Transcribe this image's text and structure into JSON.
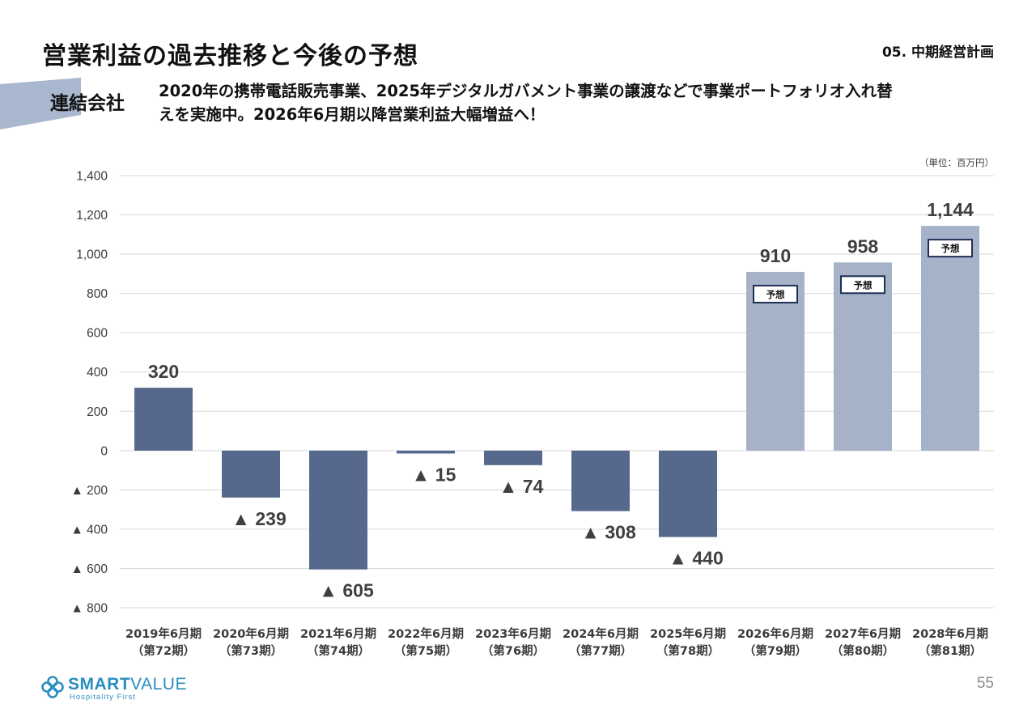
{
  "header": {
    "title": "営業利益の過去推移と今後の予想",
    "section": "05. 中期経営計画",
    "entity_label": "連結会社",
    "lead_line1": "2020年の携帯電話販売事業、2025年デジタルガバメント事業の譲渡などで事業ポートフォリオ入れ替",
    "lead_line2": "えを実施中。2026年6月期以降営業利益大幅増益へ！"
  },
  "footer": {
    "brand_smart": "SMART",
    "brand_value": "VALUE",
    "brand_tagline": "Hospitality First",
    "page_number": "55"
  },
  "colors": {
    "actual_bar": "#56698c",
    "forecast_bar": "#a5b2c7",
    "grid": "#d9d9d9",
    "label": "#3f3f3f",
    "forecast_badge_border": "#1f2f55"
  },
  "chart_data": {
    "type": "bar",
    "unit_note": "（単位：百万円）",
    "ylim": [
      -800,
      1400
    ],
    "y_ticks": [
      {
        "value": 1400,
        "label": "1,400"
      },
      {
        "value": 1200,
        "label": "1,200"
      },
      {
        "value": 1000,
        "label": "1,000"
      },
      {
        "value": 800,
        "label": "800"
      },
      {
        "value": 600,
        "label": "600"
      },
      {
        "value": 400,
        "label": "400"
      },
      {
        "value": 200,
        "label": "200"
      },
      {
        "value": 0,
        "label": "0"
      },
      {
        "value": -200,
        "label": "▲ 200"
      },
      {
        "value": -400,
        "label": "▲ 400"
      },
      {
        "value": -600,
        "label": "▲ 600"
      },
      {
        "value": -800,
        "label": "▲ 800"
      }
    ],
    "grid": true,
    "forecast_badge": "予想",
    "categories": [
      {
        "line1": "2019年6月期",
        "line2": "（第72期）"
      },
      {
        "line1": "2020年6月期",
        "line2": "（第73期）"
      },
      {
        "line1": "2021年6月期",
        "line2": "（第74期）"
      },
      {
        "line1": "2022年6月期",
        "line2": "（第75期）"
      },
      {
        "line1": "2023年6月期",
        "line2": "（第76期）"
      },
      {
        "line1": "2024年6月期",
        "line2": "（第77期）"
      },
      {
        "line1": "2025年6月期",
        "line2": "（第78期）"
      },
      {
        "line1": "2026年6月期",
        "line2": "（第79期）"
      },
      {
        "line1": "2027年6月期",
        "line2": "（第80期）"
      },
      {
        "line1": "2028年6月期",
        "line2": "（第81期）"
      }
    ],
    "values": [
      320,
      -239,
      -605,
      -15,
      -74,
      -308,
      -440,
      910,
      958,
      1144
    ],
    "data_labels": [
      "320",
      "▲ 239",
      "▲ 605",
      "▲ 15",
      "▲ 74",
      "▲ 308",
      "▲ 440",
      "910",
      "958",
      "1,144"
    ],
    "forecast": [
      false,
      false,
      false,
      false,
      false,
      false,
      false,
      true,
      true,
      true
    ]
  }
}
